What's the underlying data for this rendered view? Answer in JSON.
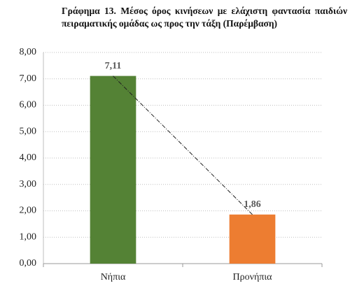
{
  "chart_data": {
    "type": "bar",
    "title": "Γράφημα 13. Μέσος όρος κινήσεων με ελάχιστη φαντασία παιδιών πειραματικής ομάδας ως προς την τάξη (Παρέμβαση)",
    "categories": [
      "Νήπια",
      "Προνήπια"
    ],
    "values": [
      7.11,
      1.86
    ],
    "value_labels": [
      "7,11",
      "1,86"
    ],
    "colors": [
      "#548235",
      "#ed7d31"
    ],
    "ylim": [
      0,
      8
    ],
    "yticks": [
      {
        "value": 0,
        "label": "0,00"
      },
      {
        "value": 1,
        "label": "1,00"
      },
      {
        "value": 2,
        "label": "2,00"
      },
      {
        "value": 3,
        "label": "3,00"
      },
      {
        "value": 4,
        "label": "4,00"
      },
      {
        "value": 5,
        "label": "5,00"
      },
      {
        "value": 6,
        "label": "6,00"
      },
      {
        "value": 7,
        "label": "7,00"
      },
      {
        "value": 8,
        "label": "8,00"
      }
    ],
    "grid": true,
    "trendline": true
  }
}
